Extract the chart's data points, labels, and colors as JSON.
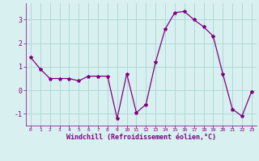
{
  "x": [
    0,
    1,
    2,
    3,
    4,
    5,
    6,
    7,
    8,
    9,
    10,
    11,
    12,
    13,
    14,
    15,
    16,
    17,
    18,
    19,
    20,
    21,
    22,
    23
  ],
  "y": [
    1.4,
    0.9,
    0.5,
    0.5,
    0.5,
    0.4,
    0.6,
    0.6,
    0.6,
    -1.2,
    0.7,
    -0.95,
    -0.6,
    1.2,
    2.6,
    3.3,
    3.35,
    3.0,
    2.7,
    2.3,
    0.7,
    -0.8,
    -1.1,
    -0.05
  ],
  "line_color": "#800080",
  "marker": "*",
  "marker_size": 3,
  "background_color": "#d8f0f0",
  "grid_color": "#b0d8d8",
  "xlabel": "Windchill (Refroidissement éolien,°C)",
  "xlabel_color": "#800080",
  "tick_color": "#800080",
  "yticks": [
    -1,
    0,
    1,
    2,
    3
  ],
  "xticks": [
    0,
    1,
    2,
    3,
    4,
    5,
    6,
    7,
    8,
    9,
    10,
    11,
    12,
    13,
    14,
    15,
    16,
    17,
    18,
    19,
    20,
    21,
    22,
    23
  ],
  "ylim": [
    -1.5,
    3.7
  ],
  "xlim": [
    -0.5,
    23.5
  ]
}
